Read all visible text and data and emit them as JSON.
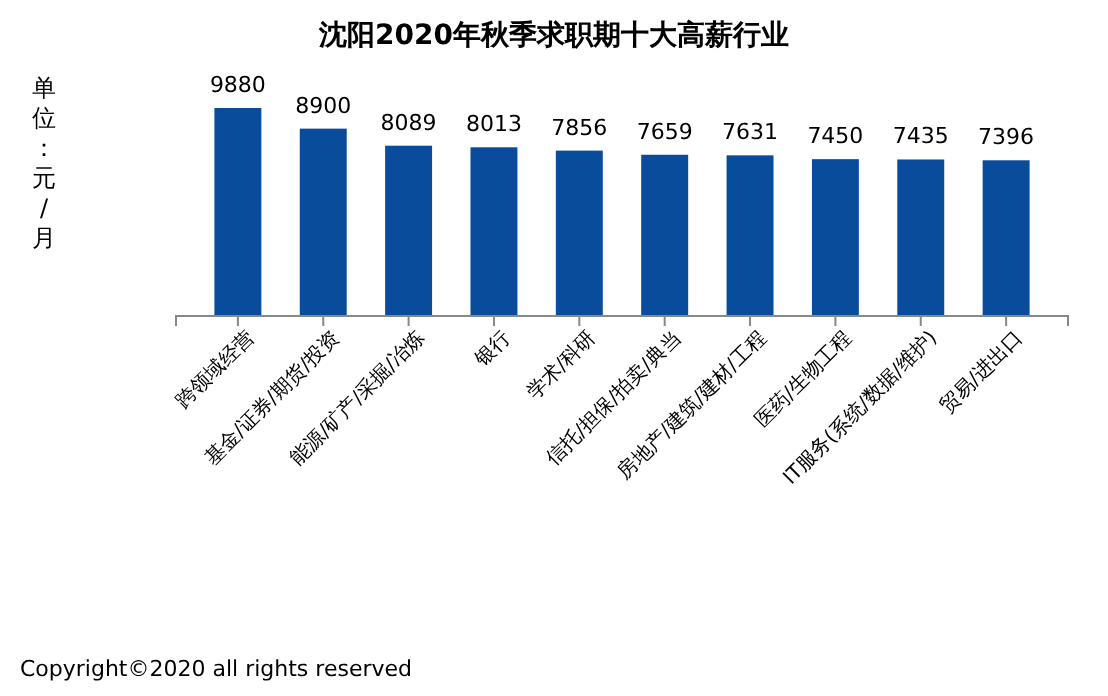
{
  "chart_data": {
    "type": "bar",
    "title": "沈阳2020年秋季求职期十大高薪行业",
    "ylabel": "单位：元/月",
    "categories": [
      "跨领域经营",
      "基金/证券/期货/投资",
      "能源/矿产/采掘/冶炼",
      "银行",
      "学术/科研",
      "信托/担保/拍卖/典当",
      "房地产/建筑/建材/工程",
      "医药/生物工程",
      "IT服务(系统/数据/维护)",
      "贸易/进出口"
    ],
    "values": [
      9880,
      8900,
      8089,
      8013,
      7856,
      7659,
      7631,
      7450,
      7435,
      7396
    ],
    "color": "#0a4c9c",
    "tick_labels": "x",
    "data_labels": true,
    "annotations": [
      "Copyright©2020 all rights reserved"
    ]
  }
}
